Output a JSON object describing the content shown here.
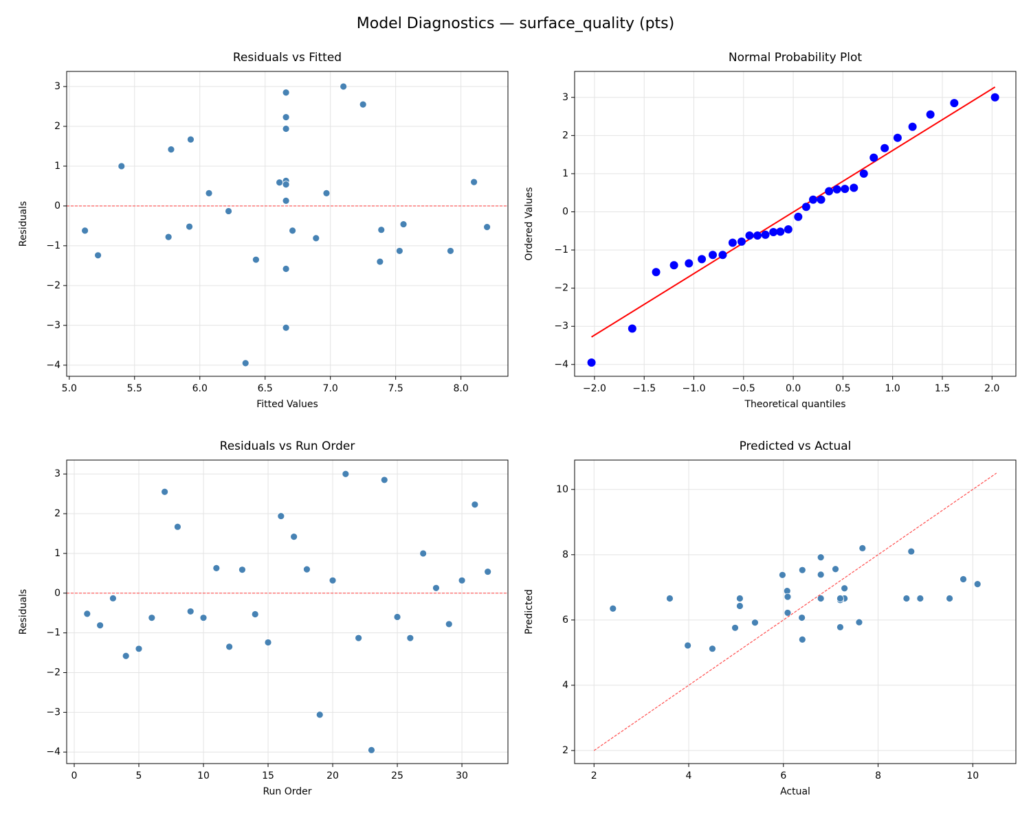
{
  "title": "Model Diagnostics — surface_quality (pts)",
  "chart_data": [
    {
      "type": "scatter",
      "title": "Residuals vs Fitted",
      "xlabel": "Fitted Values",
      "ylabel": "Residuals",
      "x": [
        5.92,
        6.89,
        6.22,
        6.66,
        7.38,
        5.12,
        7.25,
        5.93,
        7.56,
        6.71,
        6.66,
        6.43,
        6.61,
        8.2,
        5.22,
        6.66,
        5.78,
        8.1,
        6.66,
        6.07,
        7.1,
        7.53,
        6.35,
        6.66,
        7.39,
        7.92,
        5.4,
        6.66,
        5.76,
        6.97,
        6.66,
        6.66
      ],
      "values": [
        -0.52,
        -0.81,
        -0.13,
        -1.58,
        -1.4,
        -0.62,
        2.55,
        1.67,
        -0.46,
        -0.62,
        0.63,
        -1.35,
        0.59,
        -0.53,
        -1.24,
        1.94,
        1.42,
        0.6,
        -3.06,
        0.32,
        3.0,
        -1.13,
        -3.95,
        2.85,
        -0.6,
        -1.13,
        1.0,
        0.13,
        -0.78,
        0.32,
        2.23,
        0.54
      ],
      "color": "#4682b4",
      "hline": {
        "value": 0,
        "color": "#ff4d4d"
      },
      "xlim": [
        4.98,
        8.36
      ],
      "ylim": [
        -4.28,
        3.38
      ],
      "xticks": [
        {
          "value": 5,
          "label": "5.0"
        },
        {
          "value": 5.5,
          "label": "5.5"
        },
        {
          "value": 6,
          "label": "6.0"
        },
        {
          "value": 6.5,
          "label": "6.5"
        },
        {
          "value": 7,
          "label": "7.0"
        },
        {
          "value": 7.5,
          "label": "7.5"
        },
        {
          "value": 8,
          "label": "8.0"
        }
      ],
      "yticks": [
        {
          "value": -4,
          "label": "−4"
        },
        {
          "value": -3,
          "label": "−3"
        },
        {
          "value": -2,
          "label": "−2"
        },
        {
          "value": -1,
          "label": "−1"
        },
        0,
        1,
        2,
        3
      ],
      "grid": true
    },
    {
      "type": "scatter",
      "title": "Normal Probability Plot",
      "xlabel": "Theoretical quantiles",
      "ylabel": "Ordered Values",
      "x": [
        -2.03,
        -1.62,
        -1.38,
        -1.2,
        -1.05,
        -0.92,
        -0.81,
        -0.71,
        -0.61,
        -0.52,
        -0.44,
        -0.36,
        -0.28,
        -0.2,
        -0.13,
        -0.05,
        0.05,
        0.13,
        0.2,
        0.28,
        0.36,
        0.44,
        0.52,
        0.61,
        0.71,
        0.81,
        0.92,
        1.05,
        1.2,
        1.38,
        1.62,
        2.03
      ],
      "values": [
        -3.95,
        -3.06,
        -1.58,
        -1.4,
        -1.35,
        -1.24,
        -1.13,
        -1.13,
        -0.81,
        -0.78,
        -0.62,
        -0.62,
        -0.6,
        -0.53,
        -0.52,
        -0.46,
        -0.13,
        0.13,
        0.32,
        0.32,
        0.54,
        0.59,
        0.6,
        0.63,
        1.0,
        1.42,
        1.67,
        1.94,
        2.23,
        2.55,
        2.85,
        3.0
      ],
      "color": "#0000ff",
      "line": {
        "x": [
          -2.03,
          2.03
        ],
        "values": [
          -3.28,
          3.27
        ],
        "color": "#ff0000",
        "dashed": false
      },
      "xlim": [
        -2.2,
        2.24
      ],
      "ylim": [
        -4.31,
        3.68
      ],
      "xticks": [
        {
          "value": -2,
          "label": "−2.0"
        },
        {
          "value": -1.5,
          "label": "−1.5"
        },
        {
          "value": -1,
          "label": "−1.0"
        },
        {
          "value": -0.5,
          "label": "−0.5"
        },
        {
          "value": 0,
          "label": "0.0"
        },
        {
          "value": 0.5,
          "label": "0.5"
        },
        {
          "value": 1,
          "label": "1.0"
        },
        {
          "value": 1.5,
          "label": "1.5"
        },
        {
          "value": 2,
          "label": "2.0"
        }
      ],
      "yticks": [
        {
          "value": -4,
          "label": "−4"
        },
        {
          "value": -3,
          "label": "−3"
        },
        {
          "value": -2,
          "label": "−2"
        },
        {
          "value": -1,
          "label": "−1"
        },
        0,
        1,
        2,
        3
      ],
      "grid": true
    },
    {
      "type": "scatter",
      "title": "Residuals vs Run Order",
      "xlabel": "Run Order",
      "ylabel": "Residuals",
      "x": [
        1,
        2,
        3,
        4,
        5,
        6,
        7,
        8,
        9,
        10,
        11,
        12,
        13,
        14,
        15,
        16,
        17,
        18,
        19,
        20,
        21,
        22,
        23,
        24,
        25,
        26,
        27,
        28,
        29,
        30,
        31,
        32
      ],
      "values": [
        -0.52,
        -0.81,
        -0.13,
        -1.58,
        -1.4,
        -0.62,
        2.55,
        1.67,
        -0.46,
        -0.62,
        0.63,
        -1.35,
        0.59,
        -0.53,
        -1.24,
        1.94,
        1.42,
        0.6,
        -3.06,
        0.32,
        3.0,
        -1.13,
        -3.95,
        2.85,
        -0.6,
        -1.13,
        1.0,
        0.13,
        -0.78,
        0.32,
        2.23,
        0.54
      ],
      "color": "#4682b4",
      "hline": {
        "value": 0,
        "color": "#ff4d4d"
      },
      "xlim": [
        -0.585,
        33.56
      ],
      "ylim": [
        -4.29,
        3.35
      ],
      "xticks": [
        0,
        5,
        10,
        15,
        20,
        25,
        30
      ],
      "yticks": [
        {
          "value": -4,
          "label": "−4"
        },
        {
          "value": -3,
          "label": "−3"
        },
        {
          "value": -2,
          "label": "−2"
        },
        {
          "value": -1,
          "label": "−1"
        },
        0,
        1,
        2,
        3
      ],
      "grid": true
    },
    {
      "type": "scatter",
      "title": "Predicted vs Actual",
      "xlabel": "Actual",
      "ylabel": "Predicted",
      "x": [
        5.4,
        6.08,
        6.09,
        5.08,
        5.98,
        4.5,
        9.8,
        7.6,
        7.1,
        6.09,
        7.29,
        5.08,
        7.2,
        7.67,
        3.98,
        8.6,
        7.2,
        8.7,
        3.6,
        6.39,
        10.1,
        6.4,
        2.4,
        9.51,
        6.79,
        6.79,
        6.4,
        6.79,
        4.98,
        7.29,
        8.89,
        7.2
      ],
      "values": [
        5.92,
        6.89,
        6.22,
        6.66,
        7.38,
        5.12,
        7.25,
        5.93,
        7.56,
        6.71,
        6.66,
        6.43,
        6.61,
        8.2,
        5.22,
        6.66,
        5.78,
        8.1,
        6.66,
        6.07,
        7.1,
        7.53,
        6.35,
        6.66,
        7.39,
        7.92,
        5.4,
        6.66,
        5.76,
        6.97,
        6.66,
        6.66
      ],
      "color": "#4682b4",
      "line": {
        "x": [
          2.0,
          10.5
        ],
        "values": [
          2.0,
          10.5
        ],
        "color": "#ff4d4d",
        "dashed": true
      },
      "xlim": [
        1.59,
        10.91
      ],
      "ylim": [
        1.6,
        10.9
      ],
      "xticks": [
        2,
        4,
        6,
        8,
        10
      ],
      "yticks": [
        2,
        4,
        6,
        8,
        10
      ],
      "grid": true
    }
  ]
}
